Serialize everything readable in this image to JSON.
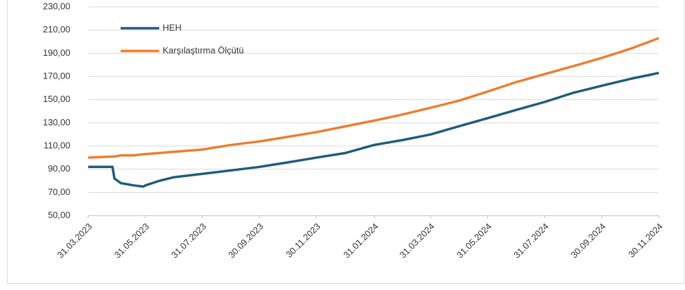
{
  "chart_data": {
    "type": "line",
    "x": [
      "31.03.2023",
      "26.04.2023",
      "28.04.2023",
      "05.05.2023",
      "19.05.2023",
      "29.05.2023",
      "31.05.2023",
      "15.06.2023",
      "30.06.2023",
      "31.07.2023",
      "31.08.2023",
      "30.09.2023",
      "31.10.2023",
      "30.11.2023",
      "31.12.2023",
      "31.01.2024",
      "29.02.2024",
      "31.03.2024",
      "30.04.2024",
      "31.05.2024",
      "30.06.2024",
      "31.07.2024",
      "31.08.2024",
      "30.09.2024",
      "31.10.2024",
      "30.11.2024"
    ],
    "series": [
      {
        "name": "HEH",
        "color": "#1f5c7a",
        "values": [
          92,
          92,
          82,
          78,
          76,
          75,
          76,
          80,
          83,
          86,
          89,
          92,
          96,
          100,
          104,
          111,
          115,
          120,
          127,
          134,
          141,
          148,
          156,
          162,
          168,
          173
        ]
      },
      {
        "name": "Karşılaştırma Ölçütü",
        "color": "#ed7d31",
        "values": [
          100,
          101,
          101,
          102,
          102,
          103,
          103,
          104,
          105,
          107,
          111,
          114,
          118,
          122,
          127,
          132,
          137,
          143,
          149,
          157,
          165,
          172,
          179,
          186,
          194,
          203
        ]
      }
    ],
    "xlim": [
      "31.03.2023",
      "30.11.2024"
    ],
    "xticks": [
      "31.03.2023",
      "31.05.2023",
      "31.07.2023",
      "30.09.2023",
      "30.11.2023",
      "31.01.2024",
      "31.03.2024",
      "31.05.2024",
      "31.07.2024",
      "30.09.2024",
      "30.11.2024"
    ],
    "ylim": [
      50,
      230
    ],
    "yticks": [
      {
        "value": 50,
        "label": "50,00"
      },
      {
        "value": 70,
        "label": "70,00"
      },
      {
        "value": 90,
        "label": "90,00"
      },
      {
        "value": 110,
        "label": "110,00"
      },
      {
        "value": 130,
        "label": "130,00"
      },
      {
        "value": 150,
        "label": "150,00"
      },
      {
        "value": 170,
        "label": "170,00"
      },
      {
        "value": 190,
        "label": "190,00"
      },
      {
        "value": 210,
        "label": "210,00"
      },
      {
        "value": 230,
        "label": "230,00"
      }
    ],
    "grid": true,
    "legend": "upper left"
  }
}
